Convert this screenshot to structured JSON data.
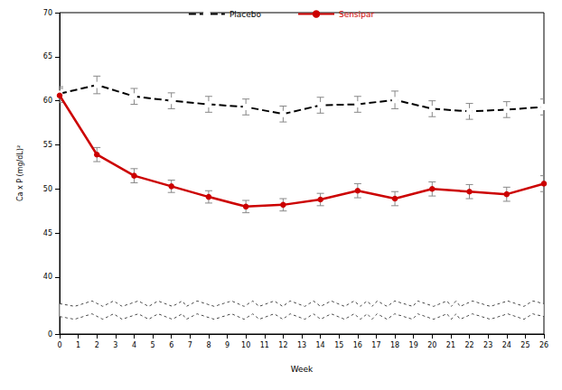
{
  "chart_data": {
    "type": "line",
    "x_label": "Week",
    "y_label": "Ca x P (mg/dL)²",
    "x": [
      0,
      2,
      4,
      6,
      8,
      10,
      12,
      14,
      16,
      18,
      20,
      22,
      24,
      26
    ],
    "series": [
      {
        "name": "Placebo",
        "color": "#000000",
        "line_style": "dashed",
        "marker": "circle-open",
        "values": [
          60.8,
          61.8,
          60.5,
          60.0,
          59.6,
          59.3,
          58.5,
          59.5,
          59.6,
          60.1,
          59.1,
          58.8,
          59.0,
          59.3
        ],
        "errors": [
          0.8,
          1.0,
          0.9,
          0.9,
          0.9,
          0.9,
          0.9,
          0.9,
          0.9,
          1.0,
          0.9,
          0.9,
          0.9,
          0.9
        ]
      },
      {
        "name": "Sensipar",
        "color": "#cc0000",
        "line_style": "solid",
        "marker": "circle",
        "values": [
          60.6,
          53.9,
          51.5,
          50.3,
          49.1,
          48.0,
          48.2,
          48.8,
          49.8,
          48.9,
          50.0,
          49.7,
          49.4,
          50.6
        ],
        "errors": [
          0.8,
          0.8,
          0.8,
          0.7,
          0.7,
          0.7,
          0.7,
          0.7,
          0.8,
          0.8,
          0.8,
          0.8,
          0.8,
          0.9
        ]
      }
    ],
    "xlim": [
      0,
      26
    ],
    "xticks": [
      0,
      1,
      2,
      3,
      4,
      5,
      6,
      7,
      8,
      9,
      10,
      11,
      12,
      13,
      14,
      15,
      16,
      17,
      18,
      19,
      20,
      21,
      22,
      23,
      24,
      25,
      26
    ],
    "ylim": [
      0,
      70
    ],
    "yticks": [
      0,
      40,
      45,
      50,
      55,
      60,
      65,
      70
    ],
    "legend": "top",
    "grid": false
  }
}
